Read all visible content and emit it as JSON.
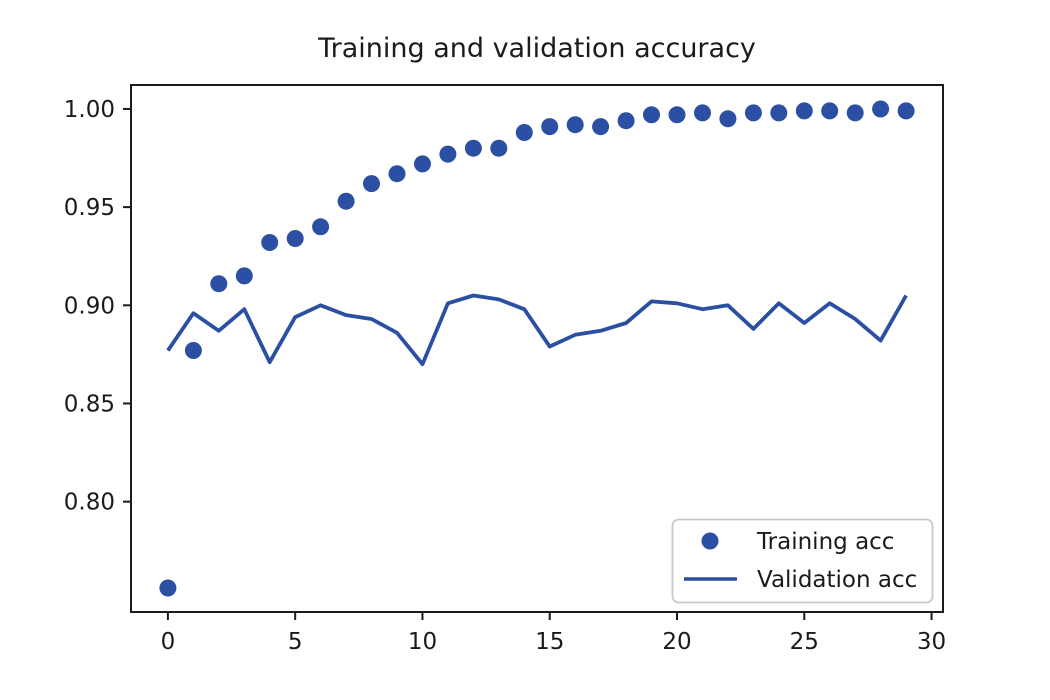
{
  "page": {
    "background": "#ffffff"
  },
  "chart_data": {
    "type": "scatter",
    "title": "Training and validation accuracy",
    "x": [
      0,
      1,
      2,
      3,
      4,
      5,
      6,
      7,
      8,
      9,
      10,
      11,
      12,
      13,
      14,
      15,
      16,
      17,
      18,
      19,
      20,
      21,
      22,
      23,
      24,
      25,
      26,
      27,
      28,
      29
    ],
    "series": [
      {
        "name": "Training acc",
        "style": "points",
        "marker": "circle",
        "values": [
          0.756,
          0.877,
          0.911,
          0.915,
          0.932,
          0.934,
          0.94,
          0.953,
          0.962,
          0.967,
          0.972,
          0.977,
          0.98,
          0.98,
          0.988,
          0.991,
          0.992,
          0.991,
          0.994,
          0.997,
          0.997,
          0.998,
          0.995,
          0.998,
          0.998,
          0.999,
          0.999,
          0.998,
          1.0,
          0.999
        ]
      },
      {
        "name": "Validation acc",
        "style": "line",
        "values": [
          0.877,
          0.896,
          0.887,
          0.898,
          0.871,
          0.894,
          0.9,
          0.895,
          0.893,
          0.886,
          0.87,
          0.901,
          0.905,
          0.903,
          0.898,
          0.879,
          0.885,
          0.887,
          0.891,
          0.902,
          0.901,
          0.898,
          0.9,
          0.888,
          0.901,
          0.891,
          0.901,
          0.893,
          0.882,
          0.905
        ]
      }
    ],
    "xlabel": "",
    "ylabel": "",
    "xlim": [
      -1.45,
      30.45
    ],
    "ylim": [
      0.7438,
      1.0122
    ],
    "xticks": [
      0,
      5,
      10,
      15,
      20,
      25,
      30
    ],
    "xtick_labels": [
      "0",
      "5",
      "10",
      "15",
      "20",
      "25",
      "30"
    ],
    "yticks": [
      0.8,
      0.85,
      0.9,
      0.95,
      1.0
    ],
    "ytick_labels": [
      "0.80",
      "0.85",
      "0.90",
      "0.95",
      "1.00"
    ],
    "grid": false,
    "legend_position": "lower right",
    "colors": {
      "accent": "#2b4fa2",
      "text": "#1b1b1b",
      "spine": "#1b1b1b",
      "legend_border": "#c9c9c9",
      "legend_bg": "#ffffff"
    }
  }
}
